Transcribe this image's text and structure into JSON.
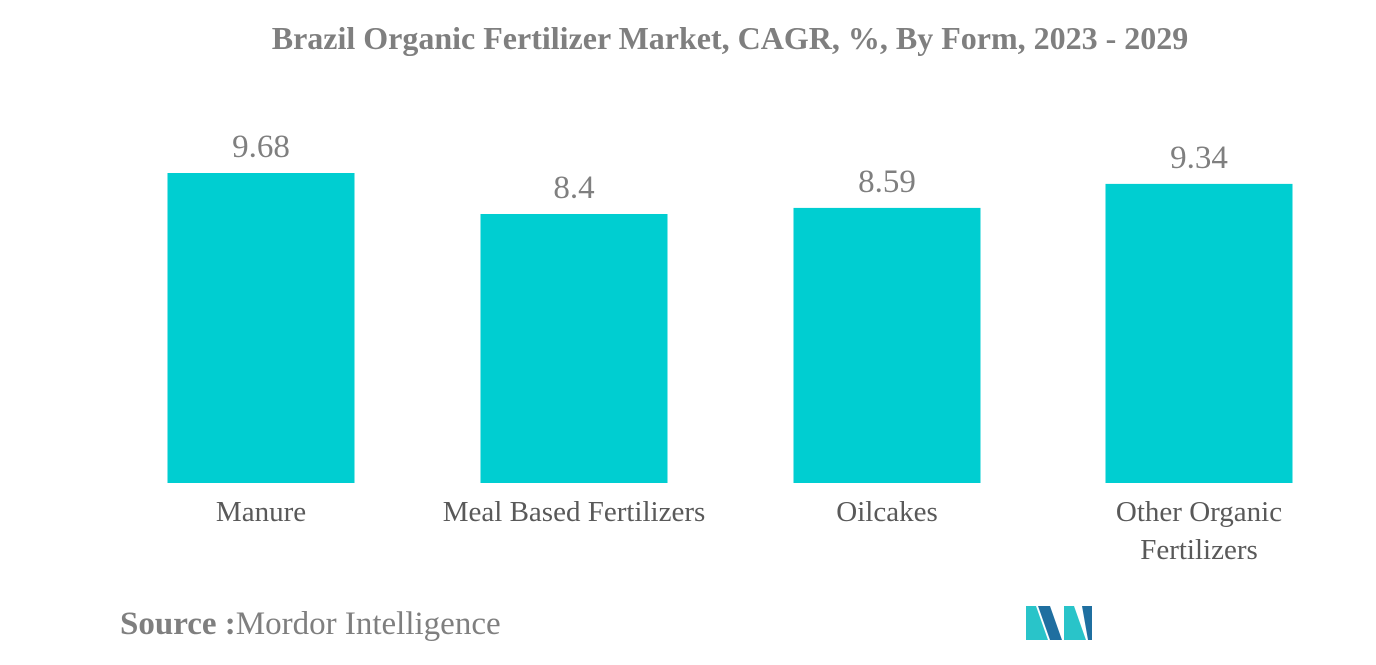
{
  "chart_data": {
    "type": "bar",
    "title": "Brazil Organic Fertilizer Market, CAGR, %, By Form, 2023 - 2029",
    "categories": [
      "Manure",
      "Meal Based Fertilizers",
      "Oilcakes",
      "Other Organic Fertilizers"
    ],
    "category_lines": [
      [
        "Manure"
      ],
      [
        "Meal Based Fertilizers"
      ],
      [
        "Oilcakes"
      ],
      [
        "Other Organic",
        "Fertilizers"
      ]
    ],
    "values": [
      9.68,
      8.4,
      8.59,
      9.34
    ],
    "value_labels": [
      "9.68",
      "8.4",
      "8.59",
      "9.34"
    ],
    "xlabel": "",
    "ylabel": "",
    "ylim": [
      0,
      9.68
    ],
    "grid": false,
    "legend": "none"
  },
  "colors": {
    "bar": "#00ced1",
    "text": "#7f7f7f",
    "label": "#595959",
    "logo_dark": "#1f6fa0",
    "logo_light": "#29c4c9"
  },
  "source": {
    "label": "Source :",
    "text": "Mordor Intelligence"
  },
  "logo": {
    "icon": "mordor-intelligence-logo-icon"
  }
}
